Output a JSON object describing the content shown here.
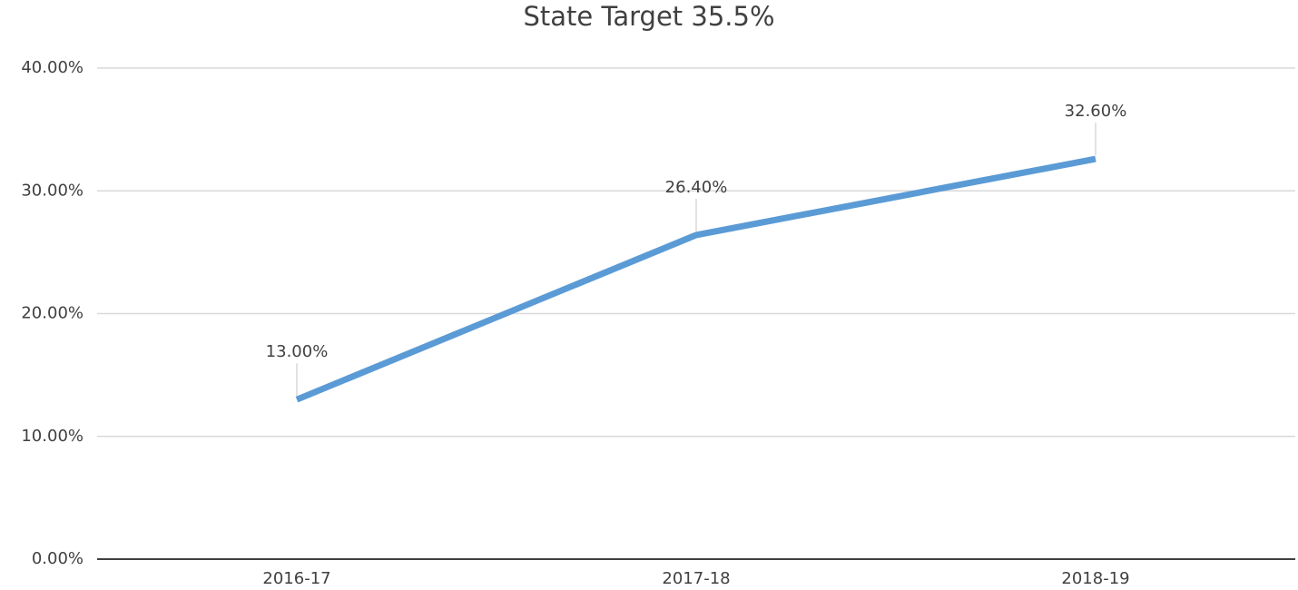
{
  "chart_data": {
    "type": "line",
    "title": "State Target 35.5%",
    "categories": [
      "2016-17",
      "2017-18",
      "2018-19"
    ],
    "values": [
      13,
      26.4,
      32.6
    ],
    "value_labels": [
      "13.00%",
      "26.40%",
      "32.60%"
    ],
    "color": "#5b9bd5",
    "ylim": [
      0,
      40
    ],
    "yticks": [
      {
        "value": 0,
        "label": "0.00%"
      },
      {
        "value": 10,
        "label": "10.00%"
      },
      {
        "value": 20,
        "label": "20.00%"
      },
      {
        "value": 30,
        "label": "30.00%"
      },
      {
        "value": 40,
        "label": "40.00%"
      }
    ],
    "grid": true
  }
}
